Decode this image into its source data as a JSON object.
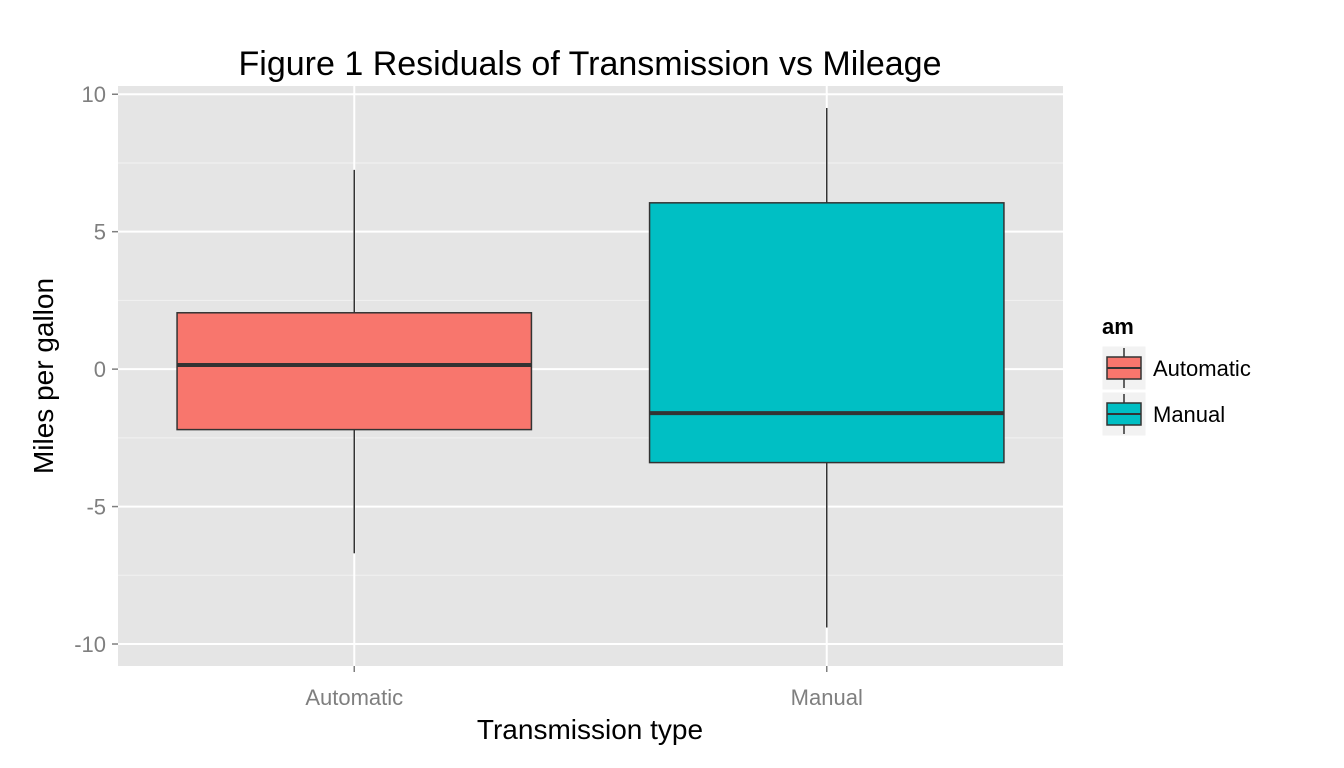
{
  "chart_data": {
    "type": "boxplot",
    "title": "Figure 1 Residuals of Transmission vs Mileage",
    "xlabel": "Transmission type",
    "ylabel": "Miles per gallon",
    "categories": [
      "Automatic",
      "Manual"
    ],
    "ylim": [
      -10.8,
      10.3
    ],
    "yticks": [
      -10,
      -5,
      0,
      5,
      10
    ],
    "ytick_labels": [
      "-10",
      "-5",
      "0",
      "5",
      "10"
    ],
    "grid": true,
    "boxes": [
      {
        "category": "Automatic",
        "min": -6.7,
        "q1": -2.2,
        "median": 0.15,
        "q3": 2.05,
        "max": 7.25,
        "fill": "#F8766D"
      },
      {
        "category": "Manual",
        "min": -9.4,
        "q1": -3.4,
        "median": -1.6,
        "q3": 6.05,
        "max": 9.5,
        "fill": "#00BFC4"
      }
    ],
    "legend": {
      "title": "am",
      "position": "right",
      "entries": [
        {
          "label": "Automatic",
          "color": "#F8766D"
        },
        {
          "label": "Manual",
          "color": "#00BFC4"
        }
      ]
    },
    "colors": {
      "panel_bg": "#E5E5E5",
      "grid_major": "#FFFFFF",
      "grid_minor": "#F2F2F2",
      "box_outline": "#333333",
      "tick_text": "#7F7F7F"
    }
  }
}
